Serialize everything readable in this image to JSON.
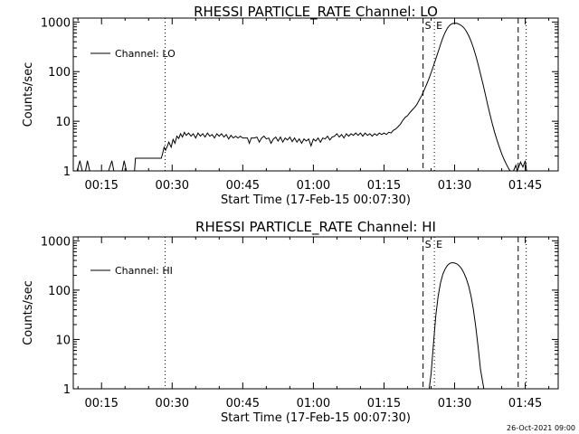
{
  "footer_timestamp": "26-Oct-2021 09:00",
  "chart_data": [
    {
      "type": "line",
      "title": "RHESSI PARTICLE_RATE Channel: LO",
      "xlabel": "Start Time (17-Feb-15 00:07:30)",
      "ylabel": "Counts/sec",
      "yscale": "log",
      "xlim_minutes": [
        9.0,
        112.0
      ],
      "ylim": [
        1,
        1200
      ],
      "x_tick_labels": [
        "00:15",
        "00:30",
        "00:45",
        "01:00",
        "01:15",
        "01:30",
        "01:45"
      ],
      "x_tick_values_minutes": [
        15,
        30,
        45,
        60,
        75,
        90,
        105
      ],
      "y_tick_labels": [
        "1",
        "10",
        "100",
        "1000"
      ],
      "y_tick_values": [
        1,
        10,
        100,
        1000
      ],
      "legend": {
        "label": "Channel: LO",
        "position": "upper-left"
      },
      "vlines": [
        {
          "t_minutes": 28.5,
          "style": "dotted",
          "label": ""
        },
        {
          "t_minutes": 83.3,
          "style": "dashed",
          "label": "S"
        },
        {
          "t_minutes": 85.7,
          "style": "dotted",
          "label": "E"
        },
        {
          "t_minutes": 103.5,
          "style": "dashed",
          "label": ""
        },
        {
          "t_minutes": 105.2,
          "style": "dotted",
          "label": ""
        }
      ],
      "series": [
        {
          "name": "Channel: LO",
          "points": [
            [
              9.0,
              1
            ],
            [
              9.8,
              1
            ],
            [
              10.4,
              1.6
            ],
            [
              10.9,
              1
            ],
            [
              11.6,
              1
            ],
            [
              12.0,
              1.6
            ],
            [
              12.5,
              1
            ],
            [
              13.0,
              1
            ],
            [
              14.0,
              1
            ],
            [
              16.5,
              1
            ],
            [
              17.2,
              1.6
            ],
            [
              17.6,
              1
            ],
            [
              19.4,
              1
            ],
            [
              19.8,
              1.6
            ],
            [
              20.3,
              1
            ],
            [
              22.0,
              1
            ],
            [
              22.2,
              1.8
            ],
            [
              25.5,
              1.8
            ],
            [
              27.7,
              1.8
            ],
            [
              28.0,
              2.3
            ],
            [
              28.3,
              3.0
            ],
            [
              28.6,
              2.6
            ],
            [
              29.0,
              3.2
            ],
            [
              29.3,
              3.8
            ],
            [
              29.8,
              3.0
            ],
            [
              30.2,
              4.3
            ],
            [
              30.6,
              3.6
            ],
            [
              31.0,
              5.0
            ],
            [
              31.4,
              4.5
            ],
            [
              31.8,
              5.6
            ],
            [
              32.2,
              4.8
            ],
            [
              32.6,
              6.0
            ],
            [
              33.0,
              5.2
            ],
            [
              33.5,
              5.8
            ],
            [
              34.0,
              5.0
            ],
            [
              34.5,
              5.6
            ],
            [
              35.0,
              4.6
            ],
            [
              35.5,
              5.8
            ],
            [
              36.0,
              5.0
            ],
            [
              36.5,
              5.6
            ],
            [
              37.0,
              4.8
            ],
            [
              37.5,
              5.8
            ],
            [
              38.0,
              5.0
            ],
            [
              38.5,
              5.4
            ],
            [
              39.0,
              4.6
            ],
            [
              39.5,
              5.6
            ],
            [
              40.0,
              5.0
            ],
            [
              40.5,
              5.6
            ],
            [
              41.0,
              4.8
            ],
            [
              41.5,
              5.4
            ],
            [
              42.0,
              4.4
            ],
            [
              42.5,
              5.2
            ],
            [
              43.0,
              4.6
            ],
            [
              43.5,
              5.0
            ],
            [
              44.0,
              4.6
            ],
            [
              44.5,
              5.0
            ],
            [
              45.0,
              4.6
            ],
            [
              45.5,
              4.6
            ],
            [
              46.0,
              4.6
            ],
            [
              46.4,
              3.6
            ],
            [
              46.8,
              4.6
            ],
            [
              47.5,
              4.6
            ],
            [
              48.0,
              4.8
            ],
            [
              48.5,
              3.8
            ],
            [
              49.0,
              4.6
            ],
            [
              49.5,
              5.0
            ],
            [
              50.0,
              4.4
            ],
            [
              50.5,
              4.6
            ],
            [
              51.0,
              3.6
            ],
            [
              51.5,
              4.4
            ],
            [
              52.0,
              4.8
            ],
            [
              52.5,
              4.0
            ],
            [
              53.0,
              4.8
            ],
            [
              53.5,
              3.8
            ],
            [
              54.0,
              4.6
            ],
            [
              54.5,
              4.2
            ],
            [
              55.0,
              4.8
            ],
            [
              55.5,
              3.9
            ],
            [
              56.0,
              4.6
            ],
            [
              56.5,
              3.8
            ],
            [
              57.0,
              4.4
            ],
            [
              57.5,
              3.6
            ],
            [
              58.0,
              4.4
            ],
            [
              58.5,
              4.0
            ],
            [
              59.0,
              4.4
            ],
            [
              59.5,
              3.2
            ],
            [
              60.0,
              4.4
            ],
            [
              60.5,
              4.0
            ],
            [
              61.0,
              4.6
            ],
            [
              61.5,
              3.8
            ],
            [
              62.0,
              4.6
            ],
            [
              62.5,
              4.4
            ],
            [
              63.0,
              5.0
            ],
            [
              63.5,
              4.2
            ],
            [
              64.0,
              4.8
            ],
            [
              64.5,
              5.0
            ],
            [
              65.0,
              5.6
            ],
            [
              65.5,
              4.8
            ],
            [
              66.0,
              5.4
            ],
            [
              66.5,
              4.6
            ],
            [
              67.0,
              5.6
            ],
            [
              67.5,
              5.0
            ],
            [
              68.0,
              5.6
            ],
            [
              68.5,
              5.2
            ],
            [
              69.0,
              5.8
            ],
            [
              69.5,
              5.2
            ],
            [
              70.0,
              5.8
            ],
            [
              70.5,
              5.0
            ],
            [
              71.0,
              5.8
            ],
            [
              71.5,
              5.2
            ],
            [
              72.0,
              5.6
            ],
            [
              72.5,
              5.0
            ],
            [
              73.0,
              5.6
            ],
            [
              73.5,
              5.2
            ],
            [
              74.0,
              5.8
            ],
            [
              74.5,
              5.4
            ],
            [
              75.0,
              5.8
            ],
            [
              75.5,
              5.4
            ],
            [
              76.0,
              6.0
            ],
            [
              76.5,
              5.8
            ],
            [
              77.0,
              6.6
            ],
            [
              77.5,
              7.0
            ],
            [
              78.0,
              7.8
            ],
            [
              78.5,
              8.8
            ],
            [
              79.0,
              10.5
            ],
            [
              79.5,
              12
            ],
            [
              80.0,
              13
            ],
            [
              80.5,
              15
            ],
            [
              81.0,
              17
            ],
            [
              81.5,
              19
            ],
            [
              82.0,
              22
            ],
            [
              82.5,
              27
            ],
            [
              83.0,
              33
            ],
            [
              83.5,
              42
            ],
            [
              84.0,
              54
            ],
            [
              84.5,
              70
            ],
            [
              85.0,
              95
            ],
            [
              85.5,
              130
            ],
            [
              86.0,
              180
            ],
            [
              86.5,
              250
            ],
            [
              87.0,
              350
            ],
            [
              87.5,
              480
            ],
            [
              88.0,
              620
            ],
            [
              88.5,
              760
            ],
            [
              89.0,
              870
            ],
            [
              89.5,
              930
            ],
            [
              90.0,
              950
            ],
            [
              90.5,
              940
            ],
            [
              91.0,
              900
            ],
            [
              91.5,
              840
            ],
            [
              92.0,
              760
            ],
            [
              92.5,
              650
            ],
            [
              93.0,
              530
            ],
            [
              93.5,
              410
            ],
            [
              94.0,
              300
            ],
            [
              94.5,
              210
            ],
            [
              95.0,
              140
            ],
            [
              95.5,
              90
            ],
            [
              96.0,
              58
            ],
            [
              96.5,
              36
            ],
            [
              97.0,
              22
            ],
            [
              97.5,
              14
            ],
            [
              98.0,
              9
            ],
            [
              98.5,
              6
            ],
            [
              99.0,
              4.2
            ],
            [
              99.5,
              3.0
            ],
            [
              100.0,
              2.2
            ],
            [
              100.5,
              1.7
            ],
            [
              101.0,
              1.35
            ],
            [
              101.5,
              1.1
            ],
            [
              101.8,
              1
            ],
            [
              102.5,
              1
            ],
            [
              103.0,
              1.3
            ],
            [
              103.3,
              1
            ],
            [
              104.0,
              1.5
            ],
            [
              104.5,
              1.2
            ],
            [
              105.0,
              1.6
            ],
            [
              105.3,
              1
            ]
          ]
        }
      ]
    },
    {
      "type": "line",
      "title": "RHESSI PARTICLE_RATE Channel: HI",
      "xlabel": "Start Time (17-Feb-15 00:07:30)",
      "ylabel": "Counts/sec",
      "yscale": "log",
      "xlim_minutes": [
        9.0,
        112.0
      ],
      "ylim": [
        1,
        1200
      ],
      "x_tick_labels": [
        "00:15",
        "00:30",
        "00:45",
        "01:00",
        "01:15",
        "01:30",
        "01:45"
      ],
      "x_tick_values_minutes": [
        15,
        30,
        45,
        60,
        75,
        90,
        105
      ],
      "y_tick_labels": [
        "1",
        "10",
        "100",
        "1000"
      ],
      "y_tick_values": [
        1,
        10,
        100,
        1000
      ],
      "legend": {
        "label": "Channel: HI",
        "position": "upper-left"
      },
      "vlines": [
        {
          "t_minutes": 28.5,
          "style": "dotted",
          "label": ""
        },
        {
          "t_minutes": 83.3,
          "style": "dashed",
          "label": "S"
        },
        {
          "t_minutes": 85.7,
          "style": "dotted",
          "label": "E"
        },
        {
          "t_minutes": 103.5,
          "style": "dashed",
          "label": ""
        },
        {
          "t_minutes": 105.2,
          "style": "dotted",
          "label": ""
        }
      ],
      "series": [
        {
          "name": "Channel: HI",
          "points": [
            [
              84.6,
              1
            ],
            [
              85.0,
              2
            ],
            [
              85.5,
              8
            ],
            [
              86.0,
              30
            ],
            [
              86.5,
              75
            ],
            [
              87.0,
              140
            ],
            [
              87.5,
              210
            ],
            [
              88.0,
              270
            ],
            [
              88.5,
              320
            ],
            [
              89.0,
              350
            ],
            [
              89.5,
              360
            ],
            [
              90.0,
              355
            ],
            [
              90.5,
              340
            ],
            [
              91.0,
              310
            ],
            [
              91.5,
              270
            ],
            [
              92.0,
              220
            ],
            [
              92.5,
              170
            ],
            [
              93.0,
              120
            ],
            [
              93.5,
              75
            ],
            [
              94.0,
              40
            ],
            [
              94.5,
              18
            ],
            [
              95.0,
              7
            ],
            [
              95.5,
              2.5
            ],
            [
              96.2,
              1
            ]
          ]
        }
      ]
    }
  ]
}
